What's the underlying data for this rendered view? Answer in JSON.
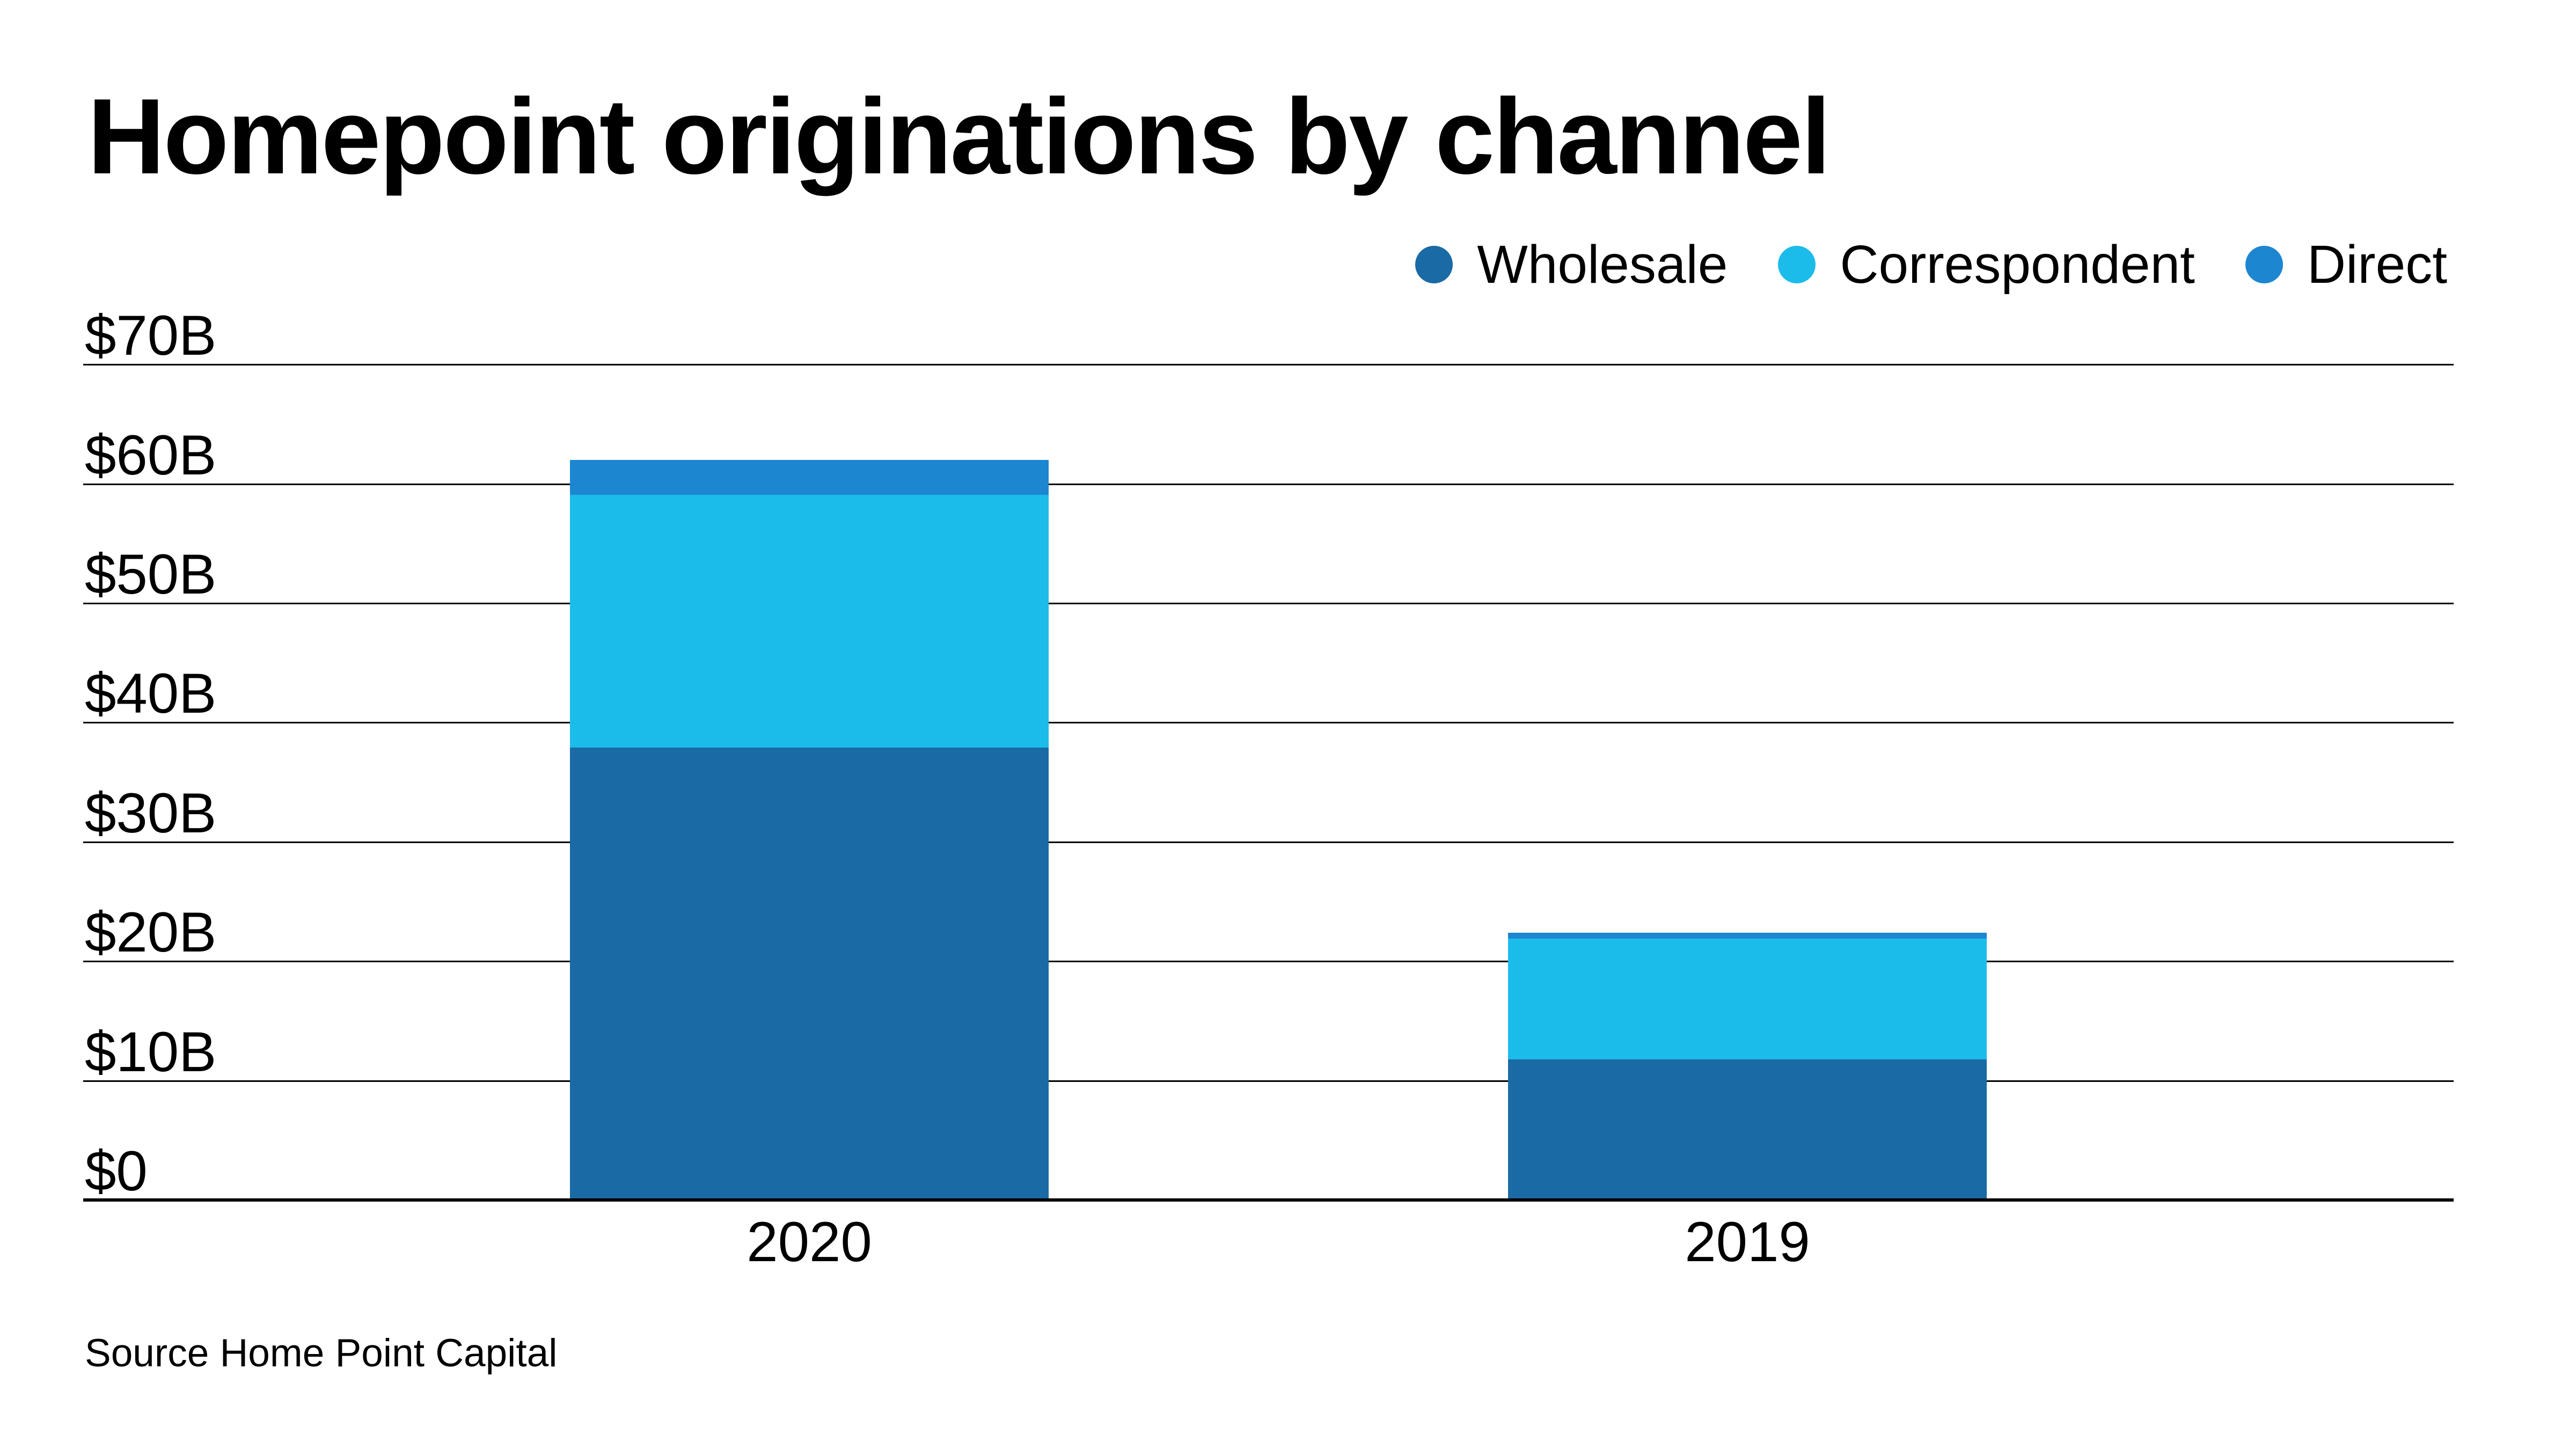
{
  "title": "Homepoint originations by channel",
  "source_note": "Source Home Point Capital",
  "colors": {
    "wholesale": "#1A6AA5",
    "correspondent": "#1CBCEA",
    "direct": "#1D86D1",
    "grid": "#000000",
    "background": "#FFFFFF",
    "text": "#000000"
  },
  "chart_data": {
    "type": "bar",
    "stacked": true,
    "title": "Homepoint originations by channel",
    "unit": "billions USD",
    "categories": [
      "2020",
      "2019"
    ],
    "series": [
      {
        "name": "Wholesale",
        "color": "#1A6AA5",
        "values": [
          37.9,
          11.8
        ]
      },
      {
        "name": "Correspondent",
        "color": "#1CBCEA",
        "values": [
          21.2,
          10.1
        ]
      },
      {
        "name": "Direct",
        "color": "#1D86D1",
        "values": [
          2.9,
          0.5
        ]
      }
    ],
    "y_ticks": [
      {
        "value": 70,
        "label": "$70B"
      },
      {
        "value": 60,
        "label": "$60B"
      },
      {
        "value": 50,
        "label": "$50B"
      },
      {
        "value": 40,
        "label": "$40B"
      },
      {
        "value": 30,
        "label": "$30B"
      },
      {
        "value": 20,
        "label": "$20B"
      },
      {
        "value": 10,
        "label": "$10B"
      },
      {
        "value": 0,
        "label": "$0"
      }
    ],
    "ylim": [
      0,
      70
    ],
    "xlabel": "",
    "ylabel": "",
    "grid": "horizontal",
    "legend_position": "top-right",
    "legend": [
      "Wholesale",
      "Correspondent",
      "Direct"
    ]
  }
}
